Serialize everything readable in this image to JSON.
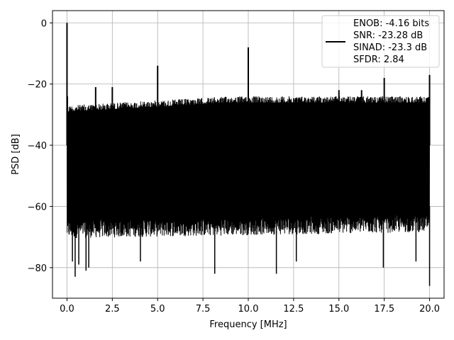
{
  "chart_data": {
    "type": "line",
    "title": "",
    "xlabel": "Frequency [MHz]",
    "ylabel": "PSD [dB]",
    "xlim": [
      -0.8,
      20.8
    ],
    "ylim": [
      -90,
      4
    ],
    "xticks": [
      0.0,
      2.5,
      5.0,
      7.5,
      10.0,
      12.5,
      15.0,
      17.5,
      20.0
    ],
    "xtick_labels": [
      "0.0",
      "2.5",
      "5.0",
      "7.5",
      "10.0",
      "12.5",
      "15.0",
      "17.5",
      "20.0"
    ],
    "yticks": [
      0,
      -20,
      -40,
      -60,
      -80
    ],
    "ytick_labels": [
      "0",
      "−20",
      "−40",
      "−60",
      "−80"
    ],
    "grid": true,
    "legend_position": "top-right",
    "line_color": "#000000",
    "legend": {
      "entries": [
        "ENOB: -4.16 bits",
        "SNR: -23.28 dB",
        "SINAD: -23.3 dB",
        "SFDR: 2.84"
      ]
    },
    "series": [
      {
        "x_range": [
          0,
          20
        ],
        "noise_floor_upper_db": [
          -27,
          -24
        ],
        "noise_floor_lower_db": [
          -68,
          -66
        ],
        "peaks": [
          {
            "x": 0.0,
            "y": 0
          },
          {
            "x": 0.02,
            "y": -24
          },
          {
            "x": 1.58,
            "y": -21
          },
          {
            "x": 2.5,
            "y": -21
          },
          {
            "x": 5.0,
            "y": -14
          },
          {
            "x": 10.0,
            "y": -8
          },
          {
            "x": 15.0,
            "y": -22
          },
          {
            "x": 16.25,
            "y": -22
          },
          {
            "x": 17.5,
            "y": -18
          },
          {
            "x": 20.0,
            "y": -17
          }
        ],
        "dips": [
          {
            "x": 0.3,
            "y": -78
          },
          {
            "x": 0.45,
            "y": -83
          },
          {
            "x": 0.65,
            "y": -79
          },
          {
            "x": 1.05,
            "y": -81
          },
          {
            "x": 1.2,
            "y": -80
          },
          {
            "x": 4.05,
            "y": -78
          },
          {
            "x": 8.15,
            "y": -82
          },
          {
            "x": 11.55,
            "y": -82
          },
          {
            "x": 12.65,
            "y": -78
          },
          {
            "x": 17.45,
            "y": -80
          },
          {
            "x": 19.25,
            "y": -78
          },
          {
            "x": 20.0,
            "y": -86
          }
        ]
      }
    ]
  }
}
